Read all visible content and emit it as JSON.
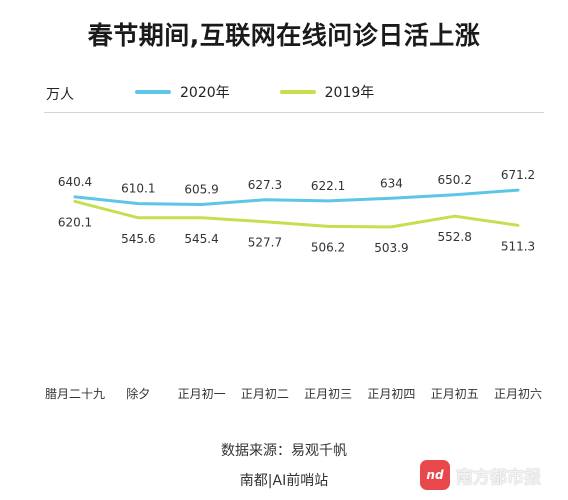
{
  "chart_data": {
    "type": "line",
    "title": "春节期间,互联网在线问诊日活上涨",
    "unit_label": "万人",
    "categories": [
      "腊月二十九",
      "除夕",
      "正月初一",
      "正月初二",
      "正月初三",
      "正月初四",
      "正月初五",
      "正月初六"
    ],
    "series": [
      {
        "name": "2020年",
        "color": "#5bc6e8",
        "values": [
          640.4,
          610.1,
          605.9,
          627.3,
          622.1,
          634,
          650.2,
          671.2
        ]
      },
      {
        "name": "2019年",
        "color": "#c5df4f",
        "values": [
          620.1,
          545.6,
          545.4,
          527.7,
          506.2,
          503.9,
          552.8,
          511.3
        ]
      }
    ],
    "legend_position": "top",
    "grid": false
  },
  "source": "数据来源：易观千帆",
  "credit": "南都|AI前哨站",
  "watermark": {
    "logo": "nd",
    "text": "南方都市报"
  }
}
